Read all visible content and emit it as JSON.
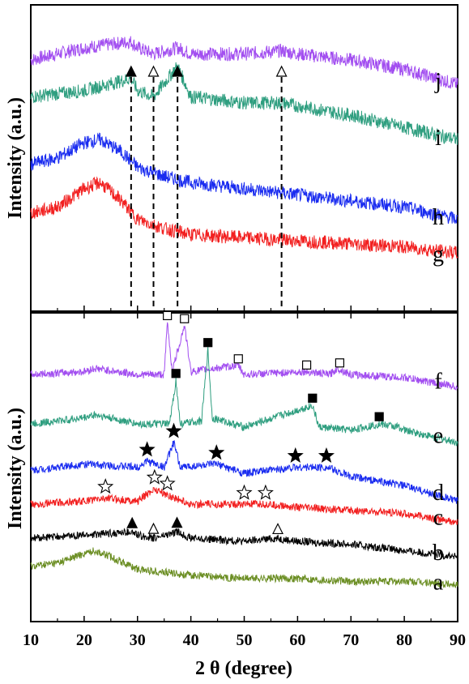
{
  "chart_data": {
    "type": "line",
    "xlabel": "2 θ (degree)",
    "xlim": [
      10,
      90
    ],
    "xticks": [
      "10",
      "20",
      "30",
      "40",
      "50",
      "60",
      "70",
      "80",
      "90"
    ],
    "panels": [
      {
        "ylabel": "Intensity (a.u.)",
        "guide_lines": [
          {
            "x": 28.8,
            "marker": "filled-triangle"
          },
          {
            "x": 33.0,
            "marker": "open-triangle"
          },
          {
            "x": 37.5,
            "marker": "filled-triangle"
          },
          {
            "x": 57.0,
            "marker": "open-triangle"
          }
        ],
        "series": [
          {
            "name": "j",
            "color": "#a24ef0",
            "points": [
              [
                10,
                0.82
              ],
              [
                20,
                0.86
              ],
              [
                28.8,
                0.88
              ],
              [
                30,
                0.86
              ],
              [
                33,
                0.84
              ],
              [
                37.5,
                0.86
              ],
              [
                40,
                0.84
              ],
              [
                50,
                0.84
              ],
              [
                57,
                0.85
              ],
              [
                60,
                0.84
              ],
              [
                70,
                0.82
              ],
              [
                80,
                0.79
              ],
              [
                90,
                0.74
              ]
            ]
          },
          {
            "name": "i",
            "color": "#2e9e7f",
            "points": [
              [
                10,
                0.7
              ],
              [
                20,
                0.72
              ],
              [
                28.8,
                0.76
              ],
              [
                30,
                0.72
              ],
              [
                33,
                0.7
              ],
              [
                37.5,
                0.8
              ],
              [
                40,
                0.7
              ],
              [
                50,
                0.68
              ],
              [
                57,
                0.68
              ],
              [
                60,
                0.67
              ],
              [
                70,
                0.64
              ],
              [
                80,
                0.6
              ],
              [
                90,
                0.56
              ]
            ]
          },
          {
            "name": "h",
            "color": "#1a2cf0",
            "points": [
              [
                10,
                0.48
              ],
              [
                15,
                0.5
              ],
              [
                20,
                0.55
              ],
              [
                23,
                0.56
              ],
              [
                27,
                0.52
              ],
              [
                30,
                0.47
              ],
              [
                35,
                0.44
              ],
              [
                40,
                0.42
              ],
              [
                50,
                0.4
              ],
              [
                60,
                0.38
              ],
              [
                70,
                0.36
              ],
              [
                80,
                0.34
              ],
              [
                90,
                0.3
              ]
            ]
          },
          {
            "name": "g",
            "color": "#f22020",
            "points": [
              [
                10,
                0.32
              ],
              [
                15,
                0.34
              ],
              [
                20,
                0.4
              ],
              [
                23,
                0.42
              ],
              [
                27,
                0.36
              ],
              [
                30,
                0.3
              ],
              [
                35,
                0.27
              ],
              [
                40,
                0.25
              ],
              [
                50,
                0.24
              ],
              [
                60,
                0.23
              ],
              [
                70,
                0.22
              ],
              [
                80,
                0.21
              ],
              [
                90,
                0.19
              ]
            ]
          }
        ]
      },
      {
        "ylabel": "Intensity (a.u.)",
        "series": [
          {
            "name": "f",
            "color": "#a24ef0",
            "markers": "open-square",
            "points": [
              [
                10,
                0.8
              ],
              [
                20,
                0.81
              ],
              [
                22,
                0.82
              ],
              [
                30,
                0.8
              ],
              [
                35,
                0.8
              ],
              [
                35.6,
                0.97
              ],
              [
                36.5,
                0.81
              ],
              [
                38.8,
                0.96
              ],
              [
                40,
                0.81
              ],
              [
                48.9,
                0.83
              ],
              [
                50,
                0.8
              ],
              [
                61.7,
                0.81
              ],
              [
                66,
                0.8
              ],
              [
                67.5,
                0.82
              ],
              [
                70,
                0.8
              ],
              [
                80,
                0.79
              ],
              [
                90,
                0.76
              ]
            ],
            "peaks": [
              35.6,
              38.8,
              48.9,
              61.7,
              67.9
            ]
          },
          {
            "name": "e",
            "color": "#2e9e7f",
            "markers": "filled-square",
            "points": [
              [
                10,
                0.64
              ],
              [
                20,
                0.66
              ],
              [
                22,
                0.67
              ],
              [
                30,
                0.64
              ],
              [
                36,
                0.64
              ],
              [
                37.2,
                0.78
              ],
              [
                38,
                0.64
              ],
              [
                42,
                0.65
              ],
              [
                43.2,
                0.88
              ],
              [
                44,
                0.66
              ],
              [
                50,
                0.63
              ],
              [
                62.8,
                0.7
              ],
              [
                64,
                0.63
              ],
              [
                70,
                0.62
              ],
              [
                75.3,
                0.64
              ],
              [
                79,
                0.63
              ],
              [
                80,
                0.62
              ],
              [
                90,
                0.58
              ]
            ],
            "peaks": [
              37.2,
              43.2,
              62.8,
              75.3
            ]
          },
          {
            "name": "d",
            "color": "#1a2cf0",
            "markers": "filled-star",
            "points": [
              [
                10,
                0.49
              ],
              [
                20,
                0.51
              ],
              [
                30,
                0.5
              ],
              [
                31.8,
                0.52
              ],
              [
                35,
                0.5
              ],
              [
                36.8,
                0.58
              ],
              [
                38,
                0.5
              ],
              [
                44.8,
                0.51
              ],
              [
                50,
                0.48
              ],
              [
                59.6,
                0.5
              ],
              [
                65.4,
                0.5
              ],
              [
                70,
                0.47
              ],
              [
                80,
                0.44
              ],
              [
                90,
                0.39
              ]
            ],
            "peaks": [
              31.8,
              36.8,
              44.8,
              59.6,
              65.4
            ]
          },
          {
            "name": "c",
            "color": "#f22020",
            "markers": "open-star",
            "points": [
              [
                10,
                0.38
              ],
              [
                20,
                0.39
              ],
              [
                24,
                0.4
              ],
              [
                30,
                0.39
              ],
              [
                33.2,
                0.43
              ],
              [
                35.6,
                0.41
              ],
              [
                40,
                0.38
              ],
              [
                50,
                0.38
              ],
              [
                54,
                0.38
              ],
              [
                60,
                0.37
              ],
              [
                70,
                0.36
              ],
              [
                80,
                0.35
              ],
              [
                90,
                0.32
              ]
            ],
            "peaks": [
              24.0,
              33.2,
              35.6,
              50.0,
              54.0
            ]
          },
          {
            "name": "b",
            "color": "#000000",
            "markers": "triangles",
            "points": [
              [
                10,
                0.27
              ],
              [
                20,
                0.28
              ],
              [
                28.8,
                0.29
              ],
              [
                30,
                0.28
              ],
              [
                33,
                0.27
              ],
              [
                37.5,
                0.29
              ],
              [
                40,
                0.27
              ],
              [
                50,
                0.26
              ],
              [
                56,
                0.27
              ],
              [
                60,
                0.26
              ],
              [
                70,
                0.25
              ],
              [
                80,
                0.23
              ],
              [
                90,
                0.21
              ]
            ],
            "peaks": [
              29.0,
              33.0,
              37.4,
              56.3
            ]
          },
          {
            "name": "a",
            "color": "#6b8e23",
            "points": [
              [
                10,
                0.18
              ],
              [
                15,
                0.19
              ],
              [
                20,
                0.22
              ],
              [
                22,
                0.23
              ],
              [
                25,
                0.21
              ],
              [
                30,
                0.17
              ],
              [
                40,
                0.15
              ],
              [
                50,
                0.14
              ],
              [
                60,
                0.14
              ],
              [
                70,
                0.13
              ],
              [
                80,
                0.13
              ],
              [
                90,
                0.12
              ]
            ]
          }
        ]
      }
    ],
    "grid": false
  }
}
